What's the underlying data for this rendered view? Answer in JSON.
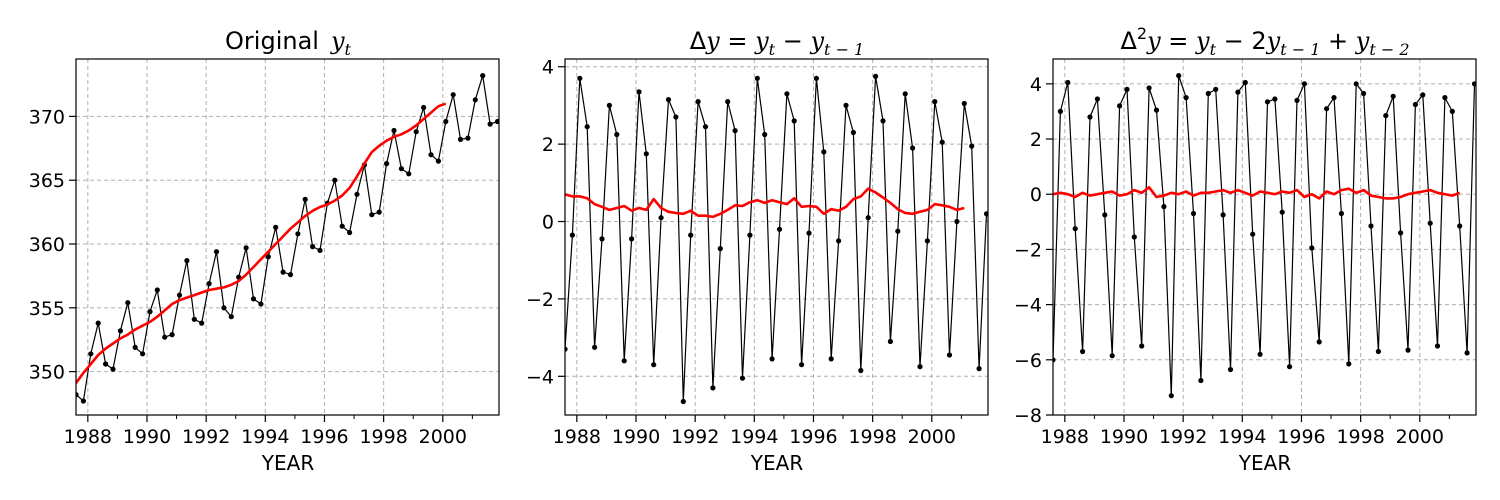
{
  "chart_data": [
    {
      "type": "line",
      "title": "Original",
      "title_math": "y_t",
      "xlabel": "YEAR",
      "ylabel": "",
      "xlim": [
        1987.6,
        2001.9
      ],
      "ylim": [
        346.6,
        374.5
      ],
      "xticks": [
        1988,
        1990,
        1992,
        1994,
        1996,
        1998,
        2000
      ],
      "yticks": [
        350,
        355,
        360,
        365,
        370
      ],
      "grid": true,
      "x_start": 1987.6,
      "x_step": 0.25,
      "series": [
        {
          "color": "#000000",
          "marker": "dot",
          "values": [
            348.2,
            347.7,
            351.4,
            353.8,
            350.6,
            350.2,
            353.2,
            355.4,
            351.9,
            351.4,
            354.7,
            356.4,
            352.7,
            352.9,
            356.0,
            358.7,
            354.1,
            353.8,
            356.9,
            359.4,
            355.0,
            354.3,
            357.4,
            359.7,
            355.7,
            355.3,
            359.0,
            361.3,
            357.8,
            357.6,
            360.8,
            363.5,
            359.8,
            359.5,
            363.2,
            365.0,
            361.4,
            360.9,
            363.9,
            366.2,
            362.3,
            362.5,
            366.3,
            368.9,
            365.9,
            365.5,
            368.8,
            370.7,
            367.0,
            366.5,
            369.6,
            371.7,
            368.2,
            368.3,
            371.3,
            373.2,
            369.4,
            369.6
          ]
        },
        {
          "color": "#ff0000",
          "marker": "none",
          "values": [
            349.1,
            349.9,
            350.6,
            351.3,
            351.8,
            352.2,
            352.6,
            352.9,
            353.3,
            353.6,
            353.9,
            354.3,
            354.8,
            355.3,
            355.6,
            355.8,
            356.0,
            356.2,
            356.4,
            356.5,
            356.6,
            356.8,
            357.1,
            357.6,
            358.2,
            358.8,
            359.4,
            360.0,
            360.6,
            361.2,
            361.7,
            362.2,
            362.6,
            362.9,
            363.1,
            363.4,
            363.8,
            364.4,
            365.3,
            366.3,
            367.2,
            367.7,
            368.1,
            368.4,
            368.6,
            368.9,
            369.3,
            369.8,
            370.3,
            370.8,
            371.0
          ]
        }
      ]
    },
    {
      "type": "line",
      "title": "Δy = y_t − y_{t−1}",
      "xlabel": "YEAR",
      "ylabel": "",
      "xlim": [
        1987.6,
        2001.9
      ],
      "ylim": [
        -5.0,
        4.2
      ],
      "xticks": [
        1988,
        1990,
        1992,
        1994,
        1996,
        1998,
        2000
      ],
      "yticks": [
        -4,
        -2,
        0,
        2,
        4
      ],
      "grid": true,
      "x_start": 1987.6,
      "x_step": 0.25,
      "series": [
        {
          "color": "#000000",
          "marker": "dot",
          "values": [
            -3.3,
            -0.35,
            3.7,
            2.45,
            -3.25,
            -0.45,
            3.0,
            2.25,
            -3.6,
            -0.45,
            3.35,
            1.75,
            -3.7,
            0.1,
            3.15,
            2.7,
            -4.65,
            -0.35,
            3.1,
            2.45,
            -4.3,
            -0.7,
            3.1,
            2.35,
            -4.05,
            -0.35,
            3.7,
            2.25,
            -3.55,
            -0.2,
            3.3,
            2.6,
            -3.7,
            -0.3,
            3.7,
            1.8,
            -3.55,
            -0.5,
            3.0,
            2.3,
            -3.85,
            0.1,
            3.75,
            2.6,
            -3.1,
            -0.25,
            3.3,
            1.9,
            -3.75,
            -0.5,
            3.1,
            2.05,
            -3.45,
            0.0,
            3.05,
            1.95,
            -3.8,
            0.2
          ]
        },
        {
          "color": "#ff0000",
          "marker": "none",
          "values": [
            0.7,
            0.65,
            0.65,
            0.6,
            0.45,
            0.38,
            0.3,
            0.35,
            0.4,
            0.28,
            0.35,
            0.3,
            0.58,
            0.35,
            0.25,
            0.22,
            0.2,
            0.28,
            0.15,
            0.15,
            0.12,
            0.2,
            0.3,
            0.42,
            0.4,
            0.5,
            0.55,
            0.48,
            0.55,
            0.5,
            0.45,
            0.6,
            0.38,
            0.4,
            0.38,
            0.2,
            0.32,
            0.28,
            0.38,
            0.58,
            0.65,
            0.85,
            0.75,
            0.62,
            0.48,
            0.32,
            0.22,
            0.2,
            0.25,
            0.3,
            0.45,
            0.42,
            0.38,
            0.3,
            0.35
          ]
        }
      ]
    },
    {
      "type": "line",
      "title": "Δ²y = y_t − 2y_{t−1} + y_{t−2}",
      "xlabel": "YEAR",
      "ylabel": "",
      "xlim": [
        1987.6,
        2001.9
      ],
      "ylim": [
        -8.0,
        4.9
      ],
      "xticks": [
        1988,
        1990,
        1992,
        1994,
        1996,
        1998,
        2000
      ],
      "yticks": [
        -8,
        -6,
        -4,
        -2,
        0,
        2,
        4
      ],
      "grid": true,
      "x_start": 1987.6,
      "x_step": 0.25,
      "series": [
        {
          "color": "#000000",
          "marker": "dot",
          "values": [
            -6.0,
            3.0,
            4.05,
            -1.25,
            -5.7,
            2.8,
            3.45,
            -0.75,
            -5.85,
            3.2,
            3.8,
            -1.55,
            -5.5,
            3.85,
            3.05,
            -0.45,
            -7.3,
            4.3,
            3.5,
            -0.7,
            -6.75,
            3.65,
            3.8,
            -0.75,
            -6.35,
            3.7,
            4.05,
            -1.45,
            -5.8,
            3.35,
            3.45,
            -0.65,
            -6.25,
            3.4,
            4.0,
            -1.95,
            -5.35,
            3.1,
            3.5,
            -0.7,
            -6.15,
            4.0,
            3.65,
            -1.15,
            -5.7,
            2.85,
            3.55,
            -1.4,
            -5.65,
            3.25,
            3.6,
            -1.05,
            -5.5,
            3.5,
            3.0,
            -1.15,
            -5.75,
            4.0
          ]
        },
        {
          "color": "#ff0000",
          "marker": "none",
          "values": [
            0.0,
            0.05,
            0.0,
            -0.1,
            0.05,
            -0.05,
            0.0,
            0.05,
            0.1,
            -0.05,
            0.0,
            0.15,
            0.05,
            0.25,
            -0.1,
            -0.05,
            0.05,
            0.0,
            0.1,
            -0.05,
            0.05,
            0.05,
            0.1,
            0.15,
            0.05,
            0.15,
            0.05,
            -0.05,
            0.1,
            0.05,
            0.0,
            0.1,
            0.05,
            0.15,
            -0.1,
            0.0,
            -0.15,
            0.1,
            0.0,
            0.15,
            0.2,
            0.05,
            0.15,
            -0.05,
            -0.1,
            -0.15,
            -0.15,
            -0.1,
            0.0,
            0.05,
            0.1,
            0.15,
            0.05,
            0.0,
            -0.05,
            0.05
          ]
        }
      ]
    }
  ]
}
